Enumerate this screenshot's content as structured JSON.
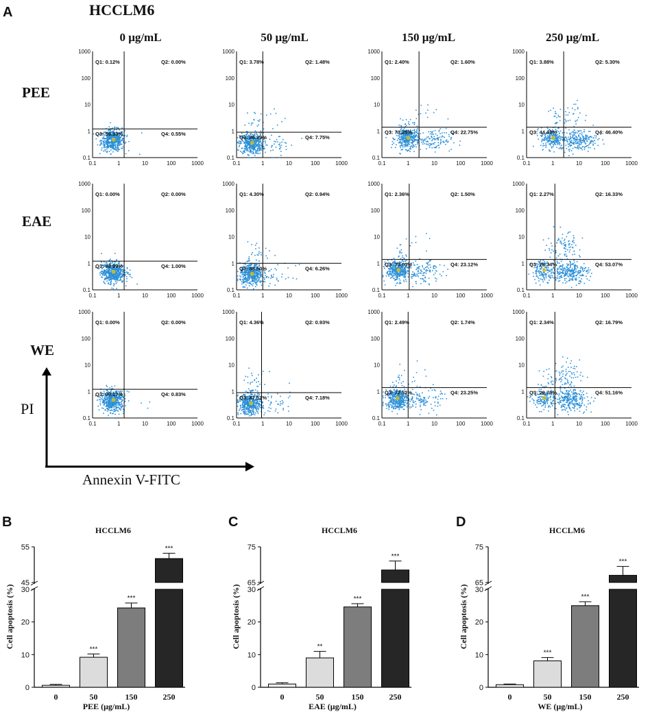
{
  "panel_a": {
    "letter": "A",
    "cell_line": "HCCLM6",
    "concentrations": [
      "0 μg/mL",
      "50 μg/mL",
      "150 μg/mL",
      "250 μg/mL"
    ],
    "rows": [
      "PEE",
      "EAE",
      "WE"
    ],
    "x_axis_label": "Annexin V-FITC",
    "y_axis_label": "PI",
    "tick_labels": [
      "0.1",
      "1",
      "10",
      "100",
      "1000"
    ],
    "colors": {
      "dots": "#2a8fd8",
      "core": "#d9c21f",
      "gate": "#000000"
    }
  },
  "chart_data": [
    {
      "type": "scatter",
      "title": "HCCLM6",
      "row": "PEE",
      "xlabel": "Annexin V-FITC",
      "ylabel": "PI",
      "xlim": [
        0.1,
        1000
      ],
      "ylim": [
        0.1,
        1000
      ],
      "plots": [
        {
          "concentration": "0 μg/mL",
          "gate_x": 1.6,
          "gate_y": 1.2,
          "q1": "Q1: 0.12%",
          "q2": "Q2: 0.00%",
          "q3": "Q3: 99.33%",
          "q4": "Q4: 0.55%"
        },
        {
          "concentration": "50 μg/mL",
          "gate_x": 1.0,
          "gate_y": 0.9,
          "q1": "Q1: 3.78%",
          "q2": "Q2: 1.48%",
          "q3": "Q3: 86.99%",
          "q4": "Q4: 7.75%"
        },
        {
          "concentration": "150 μg/mL",
          "gate_x": 2.6,
          "gate_y": 1.4,
          "q1": "Q1: 2.40%",
          "q2": "Q2: 1.60%",
          "q3": "Q3: 73.25%",
          "q4": "Q4: 22.75%"
        },
        {
          "concentration": "250 μg/mL",
          "gate_x": 2.6,
          "gate_y": 1.4,
          "q1": "Q1: 3.88%",
          "q2": "Q2: 5.30%",
          "q3": "Q3: 44.42%",
          "q4": "Q4: 46.40%"
        }
      ]
    },
    {
      "type": "scatter",
      "title": "HCCLM6",
      "row": "EAE",
      "xlabel": "Annexin V-FITC",
      "ylabel": "PI",
      "xlim": [
        0.1,
        1000
      ],
      "ylim": [
        0.1,
        1000
      ],
      "plots": [
        {
          "concentration": "0 μg/mL",
          "gate_x": 1.6,
          "gate_y": 1.2,
          "q1": "Q1: 0.00%",
          "q2": "Q2: 0.00%",
          "q3": "Q3: 98.99%",
          "q4": "Q4: 1.00%"
        },
        {
          "concentration": "50 μg/mL",
          "gate_x": 1.0,
          "gate_y": 1.0,
          "q1": "Q1: 4.30%",
          "q2": "Q2: 0.94%",
          "q3": "Q3: 88.50%",
          "q4": "Q4: 6.26%"
        },
        {
          "concentration": "150 μg/mL",
          "gate_x": 1.1,
          "gate_y": 1.4,
          "q1": "Q1: 2.36%",
          "q2": "Q2: 1.50%",
          "q3": "Q3: 73.03%",
          "q4": "Q4: 23.12%"
        },
        {
          "concentration": "250 μg/mL",
          "gate_x": 1.2,
          "gate_y": 1.4,
          "q1": "Q1: 2.27%",
          "q2": "Q2: 16.33%",
          "q3": "Q3: 28.34%",
          "q4": "Q4: 53.07%"
        }
      ]
    },
    {
      "type": "scatter",
      "title": "HCCLM6",
      "row": "WE",
      "xlabel": "Annexin V-FITC",
      "ylabel": "PI",
      "xlim": [
        0.1,
        1000
      ],
      "ylim": [
        0.1,
        1000
      ],
      "plots": [
        {
          "concentration": "0 μg/mL",
          "gate_x": 1.6,
          "gate_y": 1.2,
          "q1": "Q1: 0.00%",
          "q2": "Q2: 0.00%",
          "q3": "Q3: 99.17%",
          "q4": "Q4: 0.83%"
        },
        {
          "concentration": "50 μg/mL",
          "gate_x": 0.9,
          "gate_y": 0.9,
          "q1": "Q1: 4.36%",
          "q2": "Q2: 0.93%",
          "q3": "Q3: 87.53%",
          "q4": "Q4: 7.18%"
        },
        {
          "concentration": "150 μg/mL",
          "gate_x": 1.0,
          "gate_y": 1.4,
          "q1": "Q1: 2.49%",
          "q2": "Q2: 1.74%",
          "q3": "Q3: 72.52%",
          "q4": "Q4: 23.25%"
        },
        {
          "concentration": "250 μg/mL",
          "gate_x": 1.2,
          "gate_y": 1.4,
          "q1": "Q1: 2.34%",
          "q2": "Q2: 16.79%",
          "q3": "Q3: 29.70%",
          "q4": "Q4: 51.16%"
        }
      ]
    },
    {
      "type": "bar",
      "panel": "B",
      "title": "HCCLM6",
      "categories": [
        "0",
        "50",
        "150",
        "250"
      ],
      "values": [
        0.6,
        9.2,
        24.3,
        51.7
      ],
      "errors": [
        0.3,
        1.0,
        1.5,
        1.5
      ],
      "significance": [
        "",
        "***",
        "***",
        "***"
      ],
      "xlabel": "PEE (μg/mL)",
      "ylabel": "Cell apoptosis (%)",
      "lower_range": [
        0,
        30
      ],
      "upper_range": [
        45,
        55
      ],
      "lower_ticks": [
        "0",
        "10",
        "20",
        "30"
      ],
      "upper_ticks": [
        "45",
        "55"
      ],
      "bar_colors": [
        "#ececec",
        "#dcdcdc",
        "#7d7d7d",
        "#262626"
      ]
    },
    {
      "type": "bar",
      "panel": "C",
      "title": "HCCLM6",
      "categories": [
        "0",
        "50",
        "150",
        "250"
      ],
      "values": [
        1.0,
        9.0,
        24.6,
        68.5
      ],
      "errors": [
        0.4,
        2.0,
        1.0,
        2.5
      ],
      "significance": [
        "",
        "**",
        "***",
        "***"
      ],
      "xlabel": "EAE (μg/mL)",
      "ylabel": "Cell apoptosis (%)",
      "lower_range": [
        0,
        30
      ],
      "upper_range": [
        65,
        75
      ],
      "lower_ticks": [
        "0",
        "10",
        "20",
        "30"
      ],
      "upper_ticks": [
        "65",
        "75"
      ],
      "bar_colors": [
        "#ececec",
        "#dcdcdc",
        "#7d7d7d",
        "#262626"
      ]
    },
    {
      "type": "bar",
      "panel": "D",
      "title": "HCCLM6",
      "categories": [
        "0",
        "50",
        "150",
        "250"
      ],
      "values": [
        0.8,
        8.1,
        25.0,
        67.0
      ],
      "errors": [
        0.2,
        1.0,
        1.2,
        2.5
      ],
      "significance": [
        "",
        "***",
        "***",
        "***"
      ],
      "xlabel": "WE (μg/mL)",
      "ylabel": "Cell apoptosis (%)",
      "lower_range": [
        0,
        30
      ],
      "upper_range": [
        65,
        75
      ],
      "lower_ticks": [
        "0",
        "10",
        "20",
        "30"
      ],
      "upper_ticks": [
        "65",
        "75"
      ],
      "bar_colors": [
        "#ececec",
        "#dcdcdc",
        "#7d7d7d",
        "#262626"
      ]
    }
  ]
}
